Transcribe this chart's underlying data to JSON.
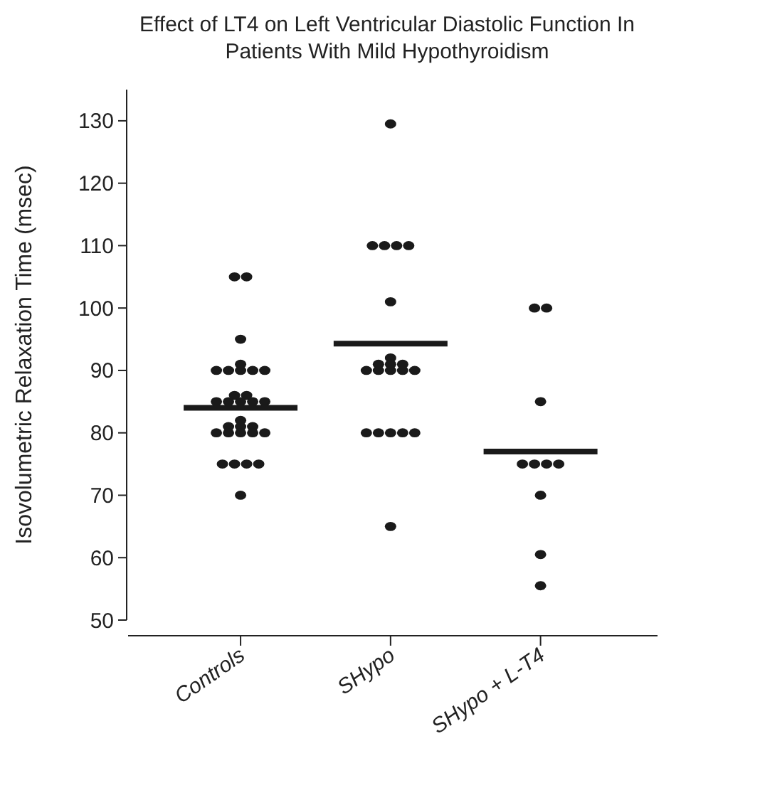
{
  "chart_data": {
    "type": "scatter",
    "title": "Effect of LT4 on Left Ventricular Diastolic Function In Patients With Mild Hypothyroidism",
    "ylabel": "Isovolumetric Relaxation Time (msec)",
    "categories": [
      "Controls",
      "SHypo",
      "SHypo + L-T4"
    ],
    "ylim": [
      50,
      135
    ],
    "yticks": [
      50,
      60,
      70,
      80,
      90,
      100,
      110,
      120,
      130
    ],
    "grid": false,
    "marker": "circle",
    "series": [
      {
        "color": "#1a1a1a",
        "x": [
          "Controls",
          "Controls",
          "Controls",
          "Controls",
          "Controls",
          "Controls",
          "Controls",
          "Controls",
          "Controls",
          "Controls",
          "Controls",
          "Controls",
          "Controls",
          "Controls",
          "Controls",
          "Controls",
          "Controls",
          "Controls",
          "Controls",
          "Controls",
          "Controls",
          "Controls",
          "Controls",
          "Controls",
          "Controls",
          "Controls",
          "Controls",
          "Controls",
          "Controls",
          "Controls",
          "SHypo",
          "SHypo",
          "SHypo",
          "SHypo",
          "SHypo",
          "SHypo",
          "SHypo",
          "SHypo",
          "SHypo",
          "SHypo",
          "SHypo",
          "SHypo",
          "SHypo",
          "SHypo",
          "SHypo",
          "SHypo",
          "SHypo",
          "SHypo",
          "SHypo",
          "SHypo",
          "SHypo",
          "SHypo + L-T4",
          "SHypo + L-T4",
          "SHypo + L-T4",
          "SHypo + L-T4",
          "SHypo + L-T4",
          "SHypo + L-T4",
          "SHypo + L-T4",
          "SHypo + L-T4",
          "SHypo + L-T4",
          "SHypo + L-T4"
        ],
        "values": [
          105,
          105,
          95,
          91,
          90,
          90,
          90,
          90,
          90,
          86,
          86,
          85,
          85,
          85,
          85,
          85,
          82,
          81,
          81,
          81,
          80,
          80,
          80,
          80,
          80,
          75,
          75,
          75,
          75,
          70,
          129.5,
          110,
          110,
          110,
          110,
          101,
          92,
          91,
          91,
          91,
          90,
          90,
          90,
          90,
          90,
          80,
          80,
          80,
          80,
          80,
          65,
          100,
          100,
          85,
          75,
          75,
          75,
          75,
          70,
          60.5,
          55.5
        ]
      },
      {
        "type": "box",
        "color": "#1a1a1a",
        "boxes": [
          {
            "low": 84,
            "q1": 84,
            "median": 84,
            "q3": 84,
            "high": 84
          },
          {
            "low": 94.3,
            "q1": 94.3,
            "median": 94.3,
            "q3": 94.3,
            "high": 94.3
          },
          {
            "low": 77,
            "q1": 77,
            "median": 77,
            "q3": 77,
            "high": 77
          }
        ]
      }
    ]
  }
}
